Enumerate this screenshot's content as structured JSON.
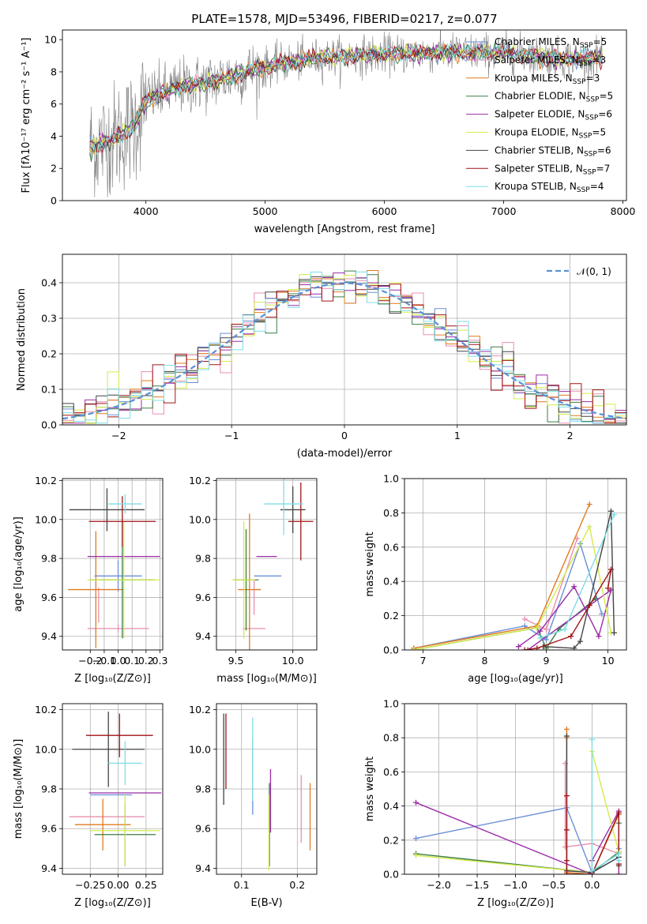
{
  "figure": {
    "title": "PLATE=1578, MJD=53496, FIBERID=0217, z=0.077"
  },
  "colors": {
    "data": "#808080",
    "Chabrier MILES": "#6b8fd6",
    "Salpeter MILES": "#e88fb0",
    "Kroupa MILES": "#e07b1e",
    "Chabrier ELODIE": "#3c7d46",
    "Salpeter ELODIE": "#9b2ca8",
    "Kroupa ELODIE": "#d3eb4a",
    "Chabrier STELIB": "#444444",
    "Salpeter STELIB": "#a11316",
    "Kroupa STELIB": "#7ddde6",
    "normal": "#5b8fd6"
  },
  "chart_data": [
    {
      "id": "spectrum",
      "type": "line",
      "xlabel": "wavelength [Angstrom, rest frame]",
      "ylabel": "Flux [fλ10⁻¹⁷ erg cm⁻² s⁻¹ A⁻¹]",
      "xlim": [
        3300,
        8030
      ],
      "ylim": [
        0,
        10.6
      ],
      "xticks": [
        4000,
        5000,
        6000,
        7000,
        8000
      ],
      "yticks": [
        0,
        2,
        4,
        6,
        8,
        10
      ],
      "xrange_data": [
        3530,
        7830
      ],
      "continuum": {
        "x": [
          3530,
          3700,
          3900,
          4000,
          4300,
          4500,
          4800,
          5000,
          5200,
          5500,
          6000,
          6500,
          7000,
          7500,
          7830
        ],
        "y": [
          3.3,
          3.7,
          4.6,
          6.3,
          7.1,
          7.3,
          7.9,
          8.3,
          8.6,
          8.9,
          9.1,
          9.2,
          9.2,
          8.8,
          8.9
        ]
      },
      "legend": {
        "placement": "upper right",
        "entries": [
          {
            "name": "Chabrier MILES",
            "label": "Chabrier MILES, N",
            "sub": "SSP",
            "suffix": "=5"
          },
          {
            "name": "Salpeter MILES",
            "label": "Salpeter MILES, N",
            "sub": "SSP",
            "suffix": "=3"
          },
          {
            "name": "Kroupa MILES",
            "label": "Kroupa MILES, N",
            "sub": "SSP",
            "suffix": "=3"
          },
          {
            "name": "Chabrier ELODIE",
            "label": "Chabrier ELODIE, N",
            "sub": "SSP",
            "suffix": "=5"
          },
          {
            "name": "Salpeter ELODIE",
            "label": "Salpeter ELODIE, N",
            "sub": "SSP",
            "suffix": "=6"
          },
          {
            "name": "Kroupa ELODIE",
            "label": "Kroupa ELODIE, N",
            "sub": "SSP",
            "suffix": "=5"
          },
          {
            "name": "Chabrier STELIB",
            "label": "Chabrier STELIB, N",
            "sub": "SSP",
            "suffix": "=6"
          },
          {
            "name": "Salpeter STELIB",
            "label": "Salpeter STELIB, N",
            "sub": "SSP",
            "suffix": "=7"
          },
          {
            "name": "Kroupa STELIB",
            "label": "Kroupa STELIB, N",
            "sub": "SSP",
            "suffix": "=4"
          }
        ]
      }
    },
    {
      "id": "residuals",
      "type": "line",
      "xlabel": "(data-model)/error",
      "ylabel": "Normed distribution",
      "xlim": [
        -2.5,
        2.5
      ],
      "ylim": [
        0,
        0.48
      ],
      "xticks": [
        -2,
        -1,
        0,
        1,
        2
      ],
      "yticks": [
        0.0,
        0.1,
        0.2,
        0.3,
        0.4
      ],
      "grid": true,
      "bin_width": 0.1,
      "legend": {
        "placement": "upper right",
        "label": "𝒩(0, 1)"
      }
    },
    {
      "id": "age_vs_Z",
      "type": "scatter",
      "xlabel": "Z [log₁₀(Z/Z⊙)]",
      "ylabel": "age  [log₁₀(age/yr)]",
      "xlim": [
        -0.4,
        0.32
      ],
      "ylim": [
        9.33,
        10.21
      ],
      "xticks": [
        -0.2,
        -0.1,
        0.0,
        0.1,
        0.2,
        0.3
      ],
      "xticklabels": [
        "−0.2",
        "−0.1",
        "0.0",
        "0.1",
        "0.2",
        "0.3"
      ],
      "yticks": [
        9.4,
        9.6,
        9.8,
        10.0,
        10.2
      ],
      "grid": true,
      "points": [
        {
          "series": "Chabrier MILES",
          "x": 0.0,
          "xerr": 0.17,
          "y": 9.71,
          "yerr": 0.08
        },
        {
          "series": "Salpeter MILES",
          "x": -0.14,
          "xerr": 0.0,
          "y": 9.56,
          "yerr": 0.09
        },
        {
          "series": "Salpeter MILES",
          "x": 0.0,
          "xerr": 0.22,
          "y": 9.44,
          "yerr": 0.02
        },
        {
          "series": "Kroupa MILES",
          "x": -0.16,
          "xerr": 0.2,
          "y": 9.64,
          "yerr": 0.3
        },
        {
          "series": "Chabrier ELODIE",
          "x": 0.03,
          "xerr": 0.23,
          "y": 9.69,
          "yerr": 0.3
        },
        {
          "series": "Salpeter ELODIE",
          "x": 0.04,
          "xerr": 0.26,
          "y": 9.81,
          "yerr": 0.0
        },
        {
          "series": "Kroupa ELODIE",
          "x": 0.04,
          "xerr": 0.26,
          "y": 9.69,
          "yerr": 0.3
        },
        {
          "series": "Chabrier STELIB",
          "x": -0.08,
          "xerr": 0.27,
          "y": 10.05,
          "yerr": 0.11
        },
        {
          "series": "Salpeter STELIB",
          "x": 0.03,
          "xerr": 0.24,
          "y": 9.99,
          "yerr": 0.13
        },
        {
          "series": "Kroupa STELIB",
          "x": 0.05,
          "xerr": 0.12,
          "y": 10.08,
          "yerr": 0.05
        }
      ]
    },
    {
      "id": "age_vs_mass",
      "type": "scatter",
      "xlabel": "mass [log₁₀(M/M⊙)]",
      "ylabel": "",
      "xlim": [
        9.33,
        10.21
      ],
      "ylim": [
        9.33,
        10.21
      ],
      "xticks": [
        9.5,
        10.0
      ],
      "yticks": [
        9.4,
        9.6,
        9.8,
        10.0,
        10.2
      ],
      "grid": true,
      "points": [
        {
          "series": "Chabrier MILES",
          "x": 9.78,
          "xerr": 0.12,
          "y": 9.71,
          "yerr": 0.0
        },
        {
          "series": "Salpeter MILES",
          "x": 9.66,
          "xerr": 0.0,
          "y": 9.6,
          "yerr": 0.09
        },
        {
          "series": "Salpeter MILES",
          "x": 9.66,
          "xerr": 0.1,
          "y": 9.44,
          "yerr": 0.0
        },
        {
          "series": "Kroupa MILES",
          "x": 9.62,
          "xerr": 0.1,
          "y": 9.64,
          "yerr": 0.39
        },
        {
          "series": "Chabrier ELODIE",
          "x": 9.59,
          "xerr": 0.11,
          "y": 9.69,
          "yerr": 0.26
        },
        {
          "series": "Salpeter ELODIE",
          "x": 9.77,
          "xerr": 0.09,
          "y": 9.81,
          "yerr": 0.0
        },
        {
          "series": "Kroupa ELODIE",
          "x": 9.57,
          "xerr": 0.1,
          "y": 9.69,
          "yerr": 0.3
        },
        {
          "series": "Chabrier STELIB",
          "x": 10.0,
          "xerr": 0.11,
          "y": 10.05,
          "yerr": 0.12
        },
        {
          "series": "Salpeter STELIB",
          "x": 10.07,
          "xerr": 0.11,
          "y": 9.99,
          "yerr": 0.2
        },
        {
          "series": "Kroupa STELIB",
          "x": 9.92,
          "xerr": 0.17,
          "y": 10.08,
          "yerr": 0.16
        }
      ]
    },
    {
      "id": "massweight_vs_age",
      "type": "line",
      "xlabel": "age  [log₁₀(age/yr)]",
      "ylabel": "mass weight",
      "xlim": [
        6.7,
        10.3
      ],
      "ylim": [
        0,
        1
      ],
      "xticks": [
        7,
        8,
        9,
        10
      ],
      "yticks": [
        0.0,
        0.2,
        0.4,
        0.6,
        0.8,
        1.0
      ],
      "grid": true,
      "series": [
        {
          "name": "Chabrier MILES",
          "x": [
            6.85,
            8.65,
            9.0,
            9.55,
            9.9
          ],
          "y": [
            0.01,
            0.14,
            0.06,
            0.62,
            0.21
          ]
        },
        {
          "name": "Salpeter MILES",
          "x": [
            8.65,
            9.0,
            9.5
          ],
          "y": [
            0.18,
            0.12,
            0.65
          ]
        },
        {
          "name": "Kroupa MILES",
          "x": [
            6.85,
            8.85,
            9.7
          ],
          "y": [
            0.01,
            0.14,
            0.85
          ]
        },
        {
          "name": "Chabrier ELODIE",
          "x": [
            6.85,
            8.85,
            9.0,
            9.2,
            9.8
          ],
          "y": [
            0.0,
            0.13,
            0.01,
            0.12,
            0.3
          ]
        },
        {
          "name": "Salpeter ELODIE",
          "x": [
            8.55,
            8.9,
            9.45,
            9.85,
            10.05,
            8.7
          ],
          "y": [
            0.02,
            0.11,
            0.37,
            0.08,
            0.35,
            0.0
          ]
        },
        {
          "name": "Kroupa ELODIE",
          "x": [
            6.85,
            8.85,
            9.7,
            10.05
          ],
          "y": [
            0.0,
            0.13,
            0.72,
            0.1
          ]
        },
        {
          "name": "Chabrier STELIB",
          "x": [
            8.95,
            9.45,
            9.55,
            10.05,
            10.1
          ],
          "y": [
            0.02,
            0.01,
            0.05,
            0.81,
            0.1
          ]
        },
        {
          "name": "Salpeter STELIB",
          "x": [
            8.65,
            8.85,
            9.4,
            9.7,
            10.05,
            10.0
          ],
          "y": [
            0.0,
            0.01,
            0.08,
            0.26,
            0.47,
            0.36
          ]
        },
        {
          "name": "Kroupa STELIB",
          "x": [
            8.9,
            9.3,
            10.1
          ],
          "y": [
            0.07,
            0.12,
            0.79
          ]
        }
      ]
    },
    {
      "id": "mass_vs_Z",
      "type": "scatter",
      "xlabel": "Z [log₁₀(Z/Z⊙)]",
      "ylabel": "mass [log₁₀(M/M⊙)]",
      "xlim": [
        -0.4,
        0.32
      ],
      "ylim": [
        9.37,
        10.23
      ],
      "xticks": [
        -0.2,
        0.0,
        0.2
      ],
      "xticklabels": [
        "−0.25",
        "0.00",
        "0.25"
      ],
      "yticks": [
        9.4,
        9.6,
        9.8,
        10.0,
        10.2
      ],
      "grid": true,
      "points": [
        {
          "series": "Chabrier MILES",
          "x": -0.05,
          "xerr": 0.15,
          "y": 9.77,
          "yerr": 0.0
        },
        {
          "series": "Salpeter MILES",
          "x": -0.08,
          "xerr": 0.0,
          "y": 9.78,
          "yerr": 0.0
        },
        {
          "series": "Salpeter MILES",
          "x": -0.08,
          "xerr": 0.27,
          "y": 9.66,
          "yerr": 0.0
        },
        {
          "series": "Kroupa MILES",
          "x": -0.11,
          "xerr": 0.2,
          "y": 9.62,
          "yerr": 0.13
        },
        {
          "series": "Chabrier ELODIE",
          "x": 0.05,
          "xerr": 0.22,
          "y": 9.57,
          "yerr": 0.16
        },
        {
          "series": "Salpeter ELODIE",
          "x": 0.05,
          "xerr": 0.26,
          "y": 9.78,
          "yerr": 0.0
        },
        {
          "series": "Kroupa ELODIE",
          "x": 0.05,
          "xerr": 0.25,
          "y": 9.59,
          "yerr": 0.18
        },
        {
          "series": "Chabrier STELIB",
          "x": -0.07,
          "xerr": 0.26,
          "y": 10.0,
          "yerr": 0.19
        },
        {
          "series": "Salpeter STELIB",
          "x": 0.01,
          "xerr": 0.24,
          "y": 10.07,
          "yerr": 0.11
        },
        {
          "series": "Kroupa STELIB",
          "x": 0.05,
          "xerr": 0.12,
          "y": 9.93,
          "yerr": 0.11
        }
      ]
    },
    {
      "id": "mass_vs_EBV",
      "type": "scatter",
      "xlabel": "E(B-V)",
      "ylabel": "",
      "xlim": [
        0.055,
        0.235
      ],
      "ylim": [
        9.37,
        10.23
      ],
      "xticks": [
        0.1,
        0.2
      ],
      "yticks": [
        9.4,
        9.6,
        9.8,
        10.0,
        10.2
      ],
      "grid": true,
      "points": [
        {
          "series": "Chabrier MILES",
          "x": 0.12,
          "xerr": 0.0,
          "y": 9.86,
          "yerr": 0.19
        },
        {
          "series": "Salpeter MILES",
          "x": 0.207,
          "xerr": 0.0,
          "y": 9.7,
          "yerr": 0.17
        },
        {
          "series": "Kroupa MILES",
          "x": 0.223,
          "xerr": 0.0,
          "y": 9.66,
          "yerr": 0.17
        },
        {
          "series": "Chabrier ELODIE",
          "x": 0.15,
          "xerr": 0.0,
          "y": 9.62,
          "yerr": 0.21
        },
        {
          "series": "Salpeter ELODIE",
          "x": 0.152,
          "xerr": 0.0,
          "y": 9.74,
          "yerr": 0.16
        },
        {
          "series": "Kroupa ELODIE",
          "x": 0.149,
          "xerr": 0.0,
          "y": 9.58,
          "yerr": 0.19
        },
        {
          "series": "Chabrier STELIB",
          "x": 0.068,
          "xerr": 0.0,
          "y": 9.95,
          "yerr": 0.23
        },
        {
          "series": "Salpeter STELIB",
          "x": 0.072,
          "xerr": 0.0,
          "y": 9.99,
          "yerr": 0.19
        },
        {
          "series": "Kroupa STELIB",
          "x": 0.12,
          "xerr": 0.0,
          "y": 9.95,
          "yerr": 0.21
        }
      ]
    },
    {
      "id": "massweight_vs_Z",
      "type": "line",
      "xlabel": "Z [log₁₀(Z/Z⊙)]",
      "ylabel": "mass weight",
      "xlim": [
        -2.45,
        0.45
      ],
      "ylim": [
        0,
        1
      ],
      "xticks": [
        -2.0,
        -1.5,
        -1.0,
        -0.5,
        0.0
      ],
      "xticklabels": [
        "−2.0",
        "−1.5",
        "−1.0",
        "−0.5",
        "0.0"
      ],
      "yticks": [
        0.0,
        0.2,
        0.4,
        0.6,
        0.8,
        1.0
      ],
      "grid": true,
      "series": [
        {
          "name": "Chabrier MILES",
          "x": [
            -2.3,
            -0.33,
            0.0,
            0.35,
            0.35
          ],
          "y": [
            0.21,
            0.39,
            0.01,
            0.1,
            0.15
          ]
        },
        {
          "name": "Salpeter MILES",
          "x": [
            -0.35,
            -0.35,
            0.0,
            0.35
          ],
          "y": [
            0.65,
            0.16,
            0.18,
            0.12
          ]
        },
        {
          "name": "Kroupa MILES",
          "x": [
            -0.33,
            -0.33,
            -0.33,
            0.0,
            0.35
          ],
          "y": [
            0.85,
            0.8,
            0.01,
            0.0,
            0.35
          ]
        },
        {
          "name": "Chabrier ELODIE",
          "x": [
            -2.3,
            0.0,
            0.35,
            0.35
          ],
          "y": [
            0.12,
            0.01,
            0.13,
            0.3
          ]
        },
        {
          "name": "Salpeter ELODIE",
          "x": [
            -2.3,
            0.0,
            0.0,
            0.35,
            0.35
          ],
          "y": [
            0.42,
            0.0,
            0.08,
            0.37,
            0.0
          ]
        },
        {
          "name": "Kroupa ELODIE",
          "x": [
            -2.3,
            0.0,
            0.0,
            0.35
          ],
          "y": [
            0.11,
            0.01,
            0.72,
            0.13
          ]
        },
        {
          "name": "Chabrier STELIB",
          "x": [
            -0.33,
            -0.33,
            0.0,
            0.35,
            0.35
          ],
          "y": [
            0.81,
            0.02,
            0.01,
            0.1,
            0.05
          ]
        },
        {
          "name": "Salpeter STELIB",
          "x": [
            -0.33,
            -0.33,
            -0.33,
            -0.33,
            0.0,
            0.35,
            0.35
          ],
          "y": [
            0.46,
            0.26,
            0.08,
            0.0,
            0.0,
            0.36,
            0.06
          ]
        },
        {
          "name": "Kroupa STELIB",
          "x": [
            0.0,
            0.0,
            0.35,
            0.35
          ],
          "y": [
            0.79,
            0.02,
            0.12,
            0.08
          ]
        }
      ]
    }
  ]
}
